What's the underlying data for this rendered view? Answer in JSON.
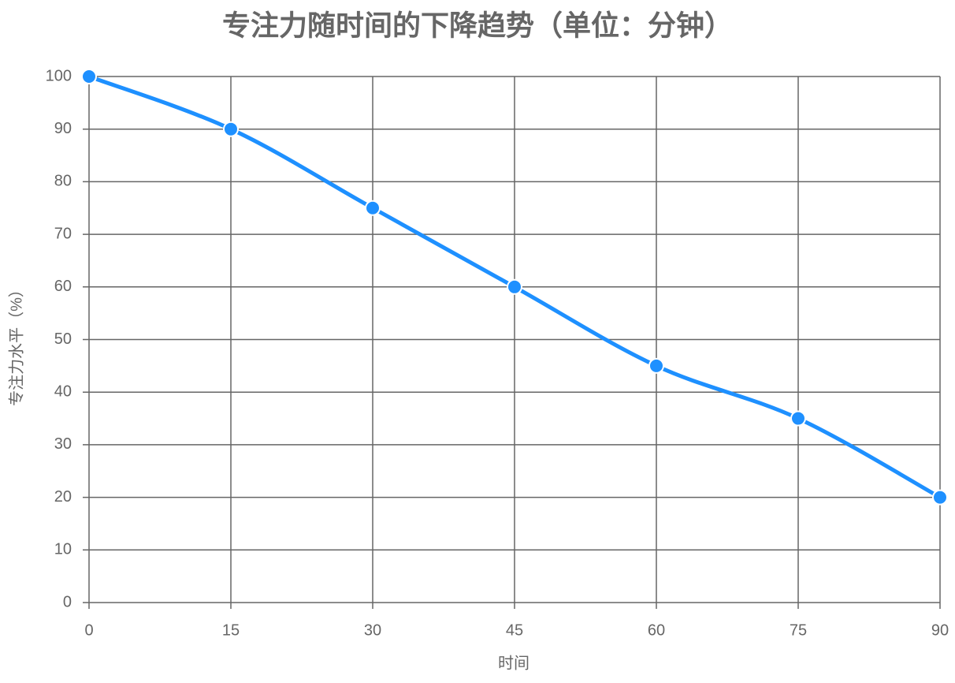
{
  "chart_data": {
    "type": "line",
    "title": "专注力随时间的下降趋势（单位：分钟）",
    "x_label": "时间",
    "y_label": "专注力水平（%）",
    "x": [
      0,
      15,
      30,
      45,
      60,
      75,
      90
    ],
    "series": [
      {
        "name": "专注力水平",
        "color": "#1e90ff",
        "values": [
          100,
          90,
          75,
          60,
          45,
          35,
          20
        ]
      }
    ],
    "xlim": [
      0,
      90
    ],
    "xticks": [
      0,
      15,
      30,
      45,
      60,
      75,
      90
    ],
    "ylim": [
      0,
      100
    ],
    "yticks": [
      0,
      10,
      20,
      30,
      40,
      50,
      60,
      70,
      80,
      90,
      100
    ],
    "grid": true,
    "smooth": true
  }
}
